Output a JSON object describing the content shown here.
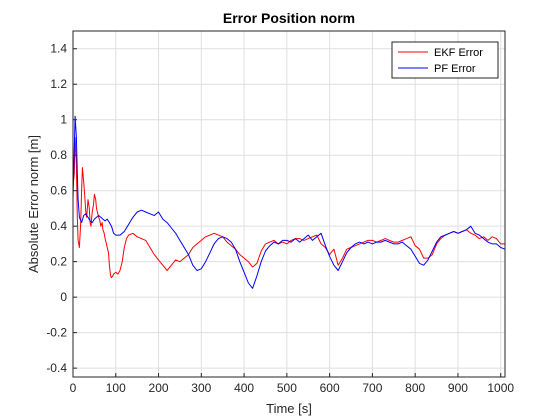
{
  "chart_data": {
    "type": "line",
    "title": "Error Position norm",
    "xlabel": "Time [s]",
    "ylabel": "Absolute Error norm [m]",
    "xlim": [
      0,
      1010
    ],
    "ylim": [
      -0.45,
      1.5
    ],
    "xticks": [
      0,
      100,
      200,
      300,
      400,
      500,
      600,
      700,
      800,
      900,
      1000
    ],
    "yticks": [
      -0.4,
      -0.2,
      0,
      0.2,
      0.4,
      0.6,
      0.8,
      1,
      1.2,
      1.4
    ],
    "xtick_labels": [
      "0",
      "100",
      "200",
      "300",
      "400",
      "500",
      "600",
      "700",
      "800",
      "900",
      "1000"
    ],
    "ytick_labels": [
      "-0.4",
      "-0.2",
      "0",
      "0.2",
      "0.4",
      "0.6",
      "0.8",
      "1",
      "1.2",
      "1.4"
    ],
    "grid": true,
    "legend_position": "top-right",
    "series": [
      {
        "name": "EKF Error",
        "color": "#ff0000",
        "x": [
          0,
          3,
          5,
          8,
          10,
          12,
          15,
          18,
          20,
          22,
          25,
          28,
          30,
          32,
          35,
          38,
          40,
          42,
          45,
          48,
          50,
          53,
          55,
          58,
          60,
          63,
          65,
          68,
          70,
          73,
          75,
          78,
          80,
          83,
          85,
          88,
          90,
          93,
          95,
          100,
          105,
          110,
          115,
          120,
          125,
          130,
          140,
          150,
          160,
          170,
          180,
          190,
          200,
          210,
          220,
          230,
          240,
          250,
          260,
          270,
          280,
          290,
          300,
          310,
          320,
          330,
          340,
          350,
          360,
          370,
          380,
          390,
          400,
          410,
          420,
          430,
          440,
          450,
          460,
          470,
          480,
          490,
          500,
          510,
          520,
          530,
          540,
          550,
          560,
          570,
          580,
          590,
          600,
          610,
          620,
          630,
          640,
          650,
          660,
          670,
          680,
          690,
          700,
          710,
          720,
          730,
          740,
          750,
          760,
          770,
          780,
          790,
          800,
          810,
          820,
          830,
          840,
          850,
          860,
          870,
          880,
          890,
          900,
          910,
          920,
          930,
          940,
          950,
          960,
          970,
          980,
          990,
          1000,
          1010
        ],
        "values": [
          0.62,
          0.7,
          0.9,
          0.75,
          0.45,
          0.32,
          0.28,
          0.42,
          0.6,
          0.73,
          0.65,
          0.55,
          0.48,
          0.45,
          0.55,
          0.5,
          0.42,
          0.4,
          0.48,
          0.52,
          0.58,
          0.55,
          0.5,
          0.47,
          0.45,
          0.43,
          0.4,
          0.42,
          0.38,
          0.36,
          0.33,
          0.3,
          0.28,
          0.25,
          0.18,
          0.12,
          0.11,
          0.12,
          0.13,
          0.14,
          0.13,
          0.15,
          0.2,
          0.28,
          0.33,
          0.35,
          0.36,
          0.34,
          0.33,
          0.32,
          0.28,
          0.24,
          0.21,
          0.18,
          0.15,
          0.18,
          0.21,
          0.2,
          0.22,
          0.24,
          0.28,
          0.3,
          0.32,
          0.34,
          0.35,
          0.36,
          0.35,
          0.34,
          0.31,
          0.29,
          0.27,
          0.24,
          0.22,
          0.2,
          0.17,
          0.19,
          0.26,
          0.3,
          0.31,
          0.32,
          0.3,
          0.31,
          0.3,
          0.32,
          0.33,
          0.33,
          0.32,
          0.33,
          0.34,
          0.35,
          0.3,
          0.28,
          0.24,
          0.27,
          0.18,
          0.22,
          0.27,
          0.28,
          0.29,
          0.3,
          0.31,
          0.32,
          0.32,
          0.31,
          0.32,
          0.33,
          0.32,
          0.31,
          0.31,
          0.32,
          0.33,
          0.34,
          0.29,
          0.27,
          0.22,
          0.22,
          0.24,
          0.3,
          0.33,
          0.35,
          0.36,
          0.37,
          0.36,
          0.37,
          0.38,
          0.36,
          0.35,
          0.33,
          0.34,
          0.32,
          0.34,
          0.33,
          0.3,
          0.3
        ],
        "label": "EKF Error"
      },
      {
        "name": "PF Error",
        "color": "#0000ff",
        "x": [
          0,
          2,
          5,
          8,
          10,
          12,
          15,
          20,
          25,
          30,
          35,
          40,
          45,
          50,
          55,
          60,
          65,
          70,
          75,
          80,
          85,
          90,
          95,
          100,
          110,
          120,
          130,
          140,
          150,
          160,
          170,
          180,
          190,
          200,
          210,
          220,
          230,
          240,
          250,
          260,
          270,
          280,
          290,
          300,
          310,
          320,
          330,
          340,
          350,
          360,
          370,
          380,
          390,
          400,
          410,
          420,
          430,
          440,
          450,
          460,
          470,
          480,
          490,
          500,
          510,
          520,
          530,
          540,
          550,
          560,
          570,
          580,
          590,
          600,
          610,
          620,
          630,
          640,
          650,
          660,
          670,
          680,
          690,
          700,
          710,
          720,
          730,
          740,
          750,
          760,
          770,
          780,
          790,
          800,
          810,
          820,
          830,
          840,
          850,
          860,
          870,
          880,
          890,
          900,
          910,
          920,
          930,
          940,
          950,
          960,
          970,
          980,
          990,
          1000,
          1010
        ],
        "values": [
          0.55,
          0.75,
          1.02,
          0.9,
          0.7,
          0.55,
          0.45,
          0.42,
          0.46,
          0.47,
          0.45,
          0.43,
          0.42,
          0.44,
          0.45,
          0.46,
          0.45,
          0.44,
          0.43,
          0.44,
          0.42,
          0.4,
          0.36,
          0.35,
          0.35,
          0.37,
          0.41,
          0.45,
          0.48,
          0.49,
          0.48,
          0.47,
          0.46,
          0.48,
          0.44,
          0.42,
          0.39,
          0.36,
          0.32,
          0.28,
          0.24,
          0.18,
          0.15,
          0.16,
          0.2,
          0.25,
          0.3,
          0.33,
          0.34,
          0.33,
          0.31,
          0.27,
          0.2,
          0.14,
          0.08,
          0.05,
          0.12,
          0.2,
          0.26,
          0.29,
          0.31,
          0.3,
          0.32,
          0.32,
          0.31,
          0.33,
          0.31,
          0.33,
          0.35,
          0.32,
          0.34,
          0.36,
          0.29,
          0.23,
          0.18,
          0.15,
          0.2,
          0.25,
          0.28,
          0.3,
          0.31,
          0.3,
          0.31,
          0.3,
          0.31,
          0.31,
          0.32,
          0.31,
          0.3,
          0.3,
          0.31,
          0.29,
          0.27,
          0.23,
          0.19,
          0.18,
          0.21,
          0.26,
          0.31,
          0.34,
          0.35,
          0.36,
          0.37,
          0.36,
          0.37,
          0.38,
          0.4,
          0.36,
          0.35,
          0.33,
          0.31,
          0.3,
          0.3,
          0.28,
          0.27
        ],
        "label": "PF Error"
      }
    ]
  }
}
